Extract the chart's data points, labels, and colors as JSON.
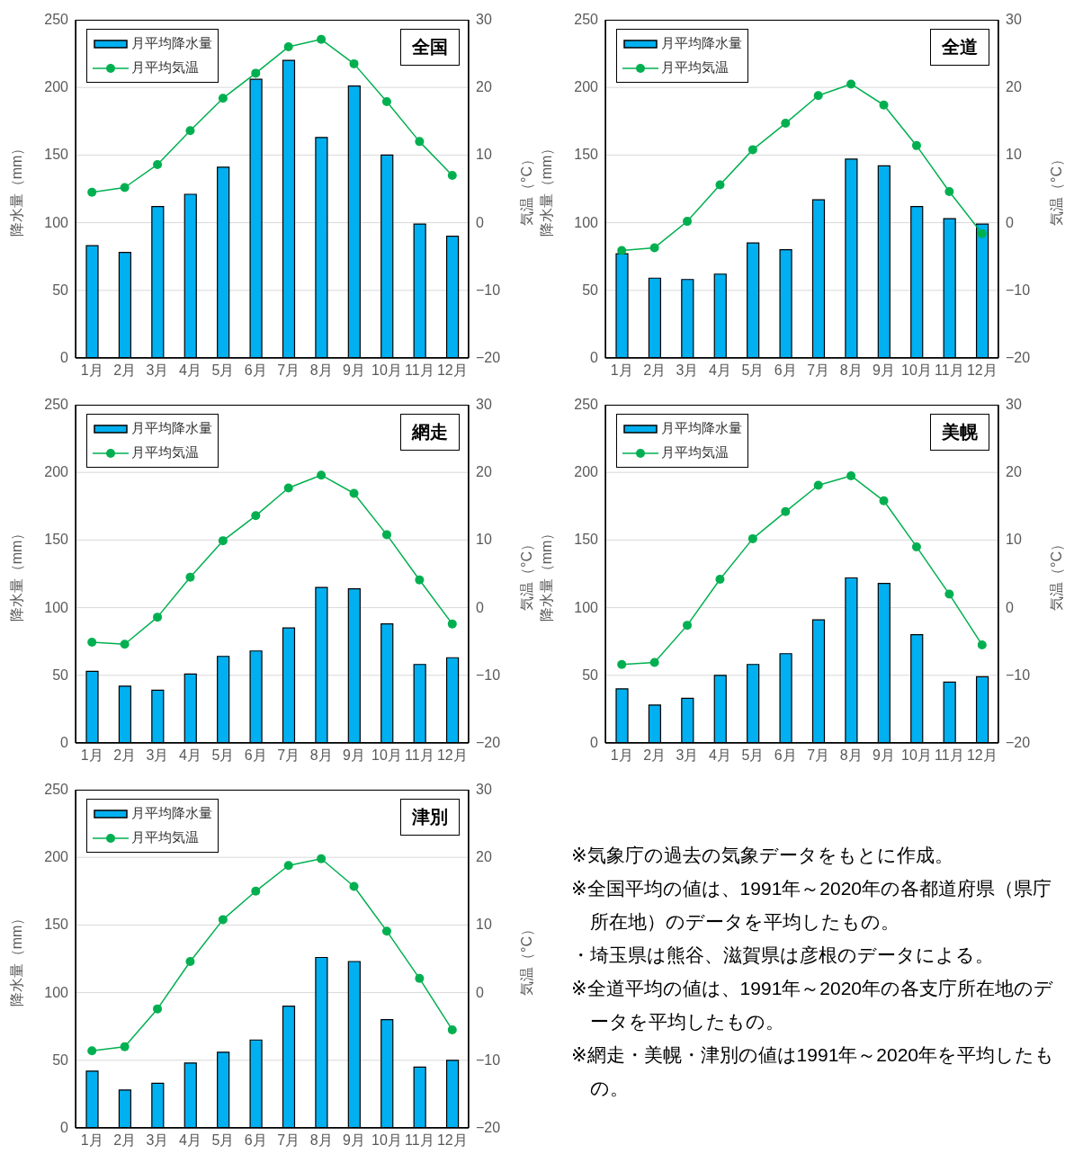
{
  "chart_data": [
    {
      "type": "bar",
      "title": "全国",
      "categories": [
        "1月",
        "2月",
        "3月",
        "4月",
        "5月",
        "6月",
        "7月",
        "8月",
        "9月",
        "10月",
        "11月",
        "12月"
      ],
      "ylabel": "降水量（mm）",
      "y2label": "気温（°C）",
      "ylim": [
        0,
        250
      ],
      "yticks": [
        0,
        50,
        100,
        150,
        200,
        250
      ],
      "y2lim": [
        -20,
        30
      ],
      "y2ticks": [
        -20,
        -10,
        0,
        10,
        20,
        30
      ],
      "grid": "y",
      "legend": "top left",
      "marker": "circle",
      "line_style": "solid",
      "series": [
        {
          "type": "bar",
          "name": "月平均降水量",
          "color": "#00b0f0",
          "values": [
            83,
            78,
            112,
            121,
            141,
            206,
            220,
            163,
            201,
            150,
            99,
            90
          ]
        },
        {
          "type": "line",
          "axis": "y2",
          "name": "月平均気温",
          "color": "#00b050",
          "values": [
            4.5,
            5.2,
            8.6,
            13.6,
            18.4,
            22.1,
            26.0,
            27.1,
            23.5,
            17.9,
            12.0,
            7.0
          ]
        }
      ]
    },
    {
      "type": "bar",
      "title": "全道",
      "categories": [
        "1月",
        "2月",
        "3月",
        "4月",
        "5月",
        "6月",
        "7月",
        "8月",
        "9月",
        "10月",
        "11月",
        "12月"
      ],
      "ylabel": "降水量（mm）",
      "y2label": "気温（°C）",
      "ylim": [
        0,
        250
      ],
      "yticks": [
        0,
        50,
        100,
        150,
        200,
        250
      ],
      "y2lim": [
        -20,
        30
      ],
      "y2ticks": [
        -20,
        -10,
        0,
        10,
        20,
        30
      ],
      "grid": "y",
      "legend": "top left",
      "marker": "circle",
      "line_style": "solid",
      "series": [
        {
          "type": "bar",
          "name": "月平均降水量",
          "color": "#00b0f0",
          "values": [
            77,
            59,
            58,
            62,
            85,
            80,
            117,
            147,
            142,
            112,
            103,
            99
          ]
        },
        {
          "type": "line",
          "axis": "y2",
          "name": "月平均気温",
          "color": "#00b050",
          "values": [
            -4.1,
            -3.7,
            0.2,
            5.6,
            10.8,
            14.7,
            18.8,
            20.5,
            17.4,
            11.4,
            4.6,
            -1.6
          ]
        }
      ]
    },
    {
      "type": "bar",
      "title": "網走",
      "categories": [
        "1月",
        "2月",
        "3月",
        "4月",
        "5月",
        "6月",
        "7月",
        "8月",
        "9月",
        "10月",
        "11月",
        "12月"
      ],
      "ylabel": "降水量（mm）",
      "y2label": "気温（°C）",
      "ylim": [
        0,
        250
      ],
      "yticks": [
        0,
        50,
        100,
        150,
        200,
        250
      ],
      "y2lim": [
        -20,
        30
      ],
      "y2ticks": [
        -20,
        -10,
        0,
        10,
        20,
        30
      ],
      "grid": "y",
      "legend": "top left",
      "marker": "circle",
      "line_style": "solid",
      "series": [
        {
          "type": "bar",
          "name": "月平均降水量",
          "color": "#00b0f0",
          "values": [
            53,
            42,
            39,
            51,
            64,
            68,
            85,
            115,
            114,
            88,
            58,
            63
          ]
        },
        {
          "type": "line",
          "axis": "y2",
          "name": "月平均気温",
          "color": "#00b050",
          "values": [
            -5.1,
            -5.4,
            -1.4,
            4.5,
            9.9,
            13.6,
            17.7,
            19.6,
            16.9,
            10.8,
            4.1,
            -2.4
          ]
        }
      ]
    },
    {
      "type": "bar",
      "title": "美幌",
      "categories": [
        "1月",
        "2月",
        "3月",
        "4月",
        "5月",
        "6月",
        "7月",
        "8月",
        "9月",
        "10月",
        "11月",
        "12月"
      ],
      "ylabel": "降水量（mm）",
      "y2label": "気温（°C）",
      "ylim": [
        0,
        250
      ],
      "yticks": [
        0,
        50,
        100,
        150,
        200,
        250
      ],
      "y2lim": [
        -20,
        30
      ],
      "y2ticks": [
        -20,
        -10,
        0,
        10,
        20,
        30
      ],
      "grid": "y",
      "legend": "top left",
      "marker": "circle",
      "line_style": "solid",
      "series": [
        {
          "type": "bar",
          "name": "月平均降水量",
          "color": "#00b0f0",
          "values": [
            40,
            28,
            33,
            50,
            58,
            66,
            91,
            122,
            118,
            80,
            45,
            49
          ]
        },
        {
          "type": "line",
          "axis": "y2",
          "name": "月平均気温",
          "color": "#00b050",
          "values": [
            -8.4,
            -8.1,
            -2.6,
            4.2,
            10.2,
            14.2,
            18.1,
            19.5,
            15.8,
            9.0,
            2.0,
            -5.5
          ]
        }
      ]
    },
    {
      "type": "bar",
      "title": "津別",
      "categories": [
        "1月",
        "2月",
        "3月",
        "4月",
        "5月",
        "6月",
        "7月",
        "8月",
        "9月",
        "10月",
        "11月",
        "12月"
      ],
      "ylabel": "降水量（mm）",
      "y2label": "気温（°C）",
      "ylim": [
        0,
        250
      ],
      "yticks": [
        0,
        50,
        100,
        150,
        200,
        250
      ],
      "y2lim": [
        -20,
        30
      ],
      "y2ticks": [
        -20,
        -10,
        0,
        10,
        20,
        30
      ],
      "grid": "y",
      "legend": "top left",
      "marker": "circle",
      "line_style": "solid",
      "series": [
        {
          "type": "bar",
          "name": "月平均降水量",
          "color": "#00b0f0",
          "values": [
            42,
            28,
            33,
            48,
            56,
            65,
            90,
            126,
            123,
            80,
            45,
            50
          ]
        },
        {
          "type": "line",
          "axis": "y2",
          "name": "月平均気温",
          "color": "#00b050",
          "values": [
            -8.6,
            -8.0,
            -2.4,
            4.6,
            10.8,
            15.0,
            18.8,
            19.8,
            15.7,
            9.1,
            2.1,
            -5.5
          ]
        }
      ]
    },
    {
      "type": "other",
      "annotations": [
        "※気象庁の過去の気象データをもとに作成。",
        "※全国平均の値は、1991年～2020年の各都道府県（県庁所在地）のデータを平均したもの。",
        "・埼玉県は熊谷、滋賀県は彦根のデータによる。",
        "※全道平均の値は、1991年～2020年の各支庁所在地のデータを平均したもの。",
        "※網走・美幌・津別の値は1991年～2020年を平均したもの。"
      ]
    }
  ]
}
